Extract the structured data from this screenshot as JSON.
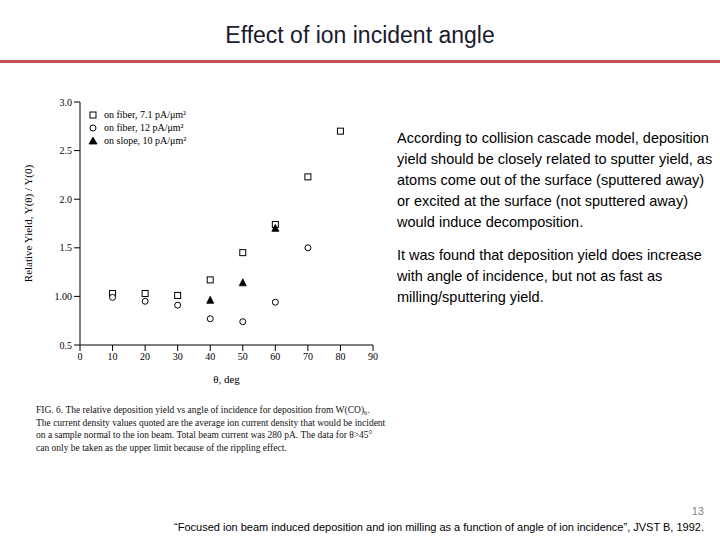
{
  "title": "Effect of ion incident angle",
  "chart_data": {
    "type": "scatter",
    "x_label": "θ, deg",
    "y_label": "Relative Yield, Y(θ) / Y(0)",
    "xlim": [
      0,
      90
    ],
    "xticks": [
      0,
      10,
      20,
      30,
      40,
      50,
      60,
      70,
      80,
      90
    ],
    "ylim": [
      0.5,
      3.0
    ],
    "yticks": [
      {
        "value": 0.5,
        "label": "0.5"
      },
      {
        "value": 1.0,
        "label": "1.00"
      },
      {
        "value": 1.5,
        "label": "1.5"
      },
      {
        "value": 2.0,
        "label": "2.0"
      },
      {
        "value": 2.5,
        "label": "2.5"
      },
      {
        "value": 3.0,
        "label": "3.0"
      }
    ],
    "grid": false,
    "legend": "upper left",
    "series": [
      {
        "name": "on fiber, 7.1 pA/μm²",
        "color": "#000000",
        "marker": "square",
        "x": [
          10,
          20,
          30,
          40,
          50,
          60,
          70,
          80
        ],
        "values": [
          1.03,
          1.03,
          1.01,
          1.17,
          1.45,
          1.74,
          2.23,
          2.7
        ]
      },
      {
        "name": "on fiber, 12 pA/μm²",
        "color": "#000000",
        "marker": "circle",
        "x": [
          10,
          20,
          30,
          40,
          50,
          60,
          70
        ],
        "values": [
          0.99,
          0.95,
          0.91,
          0.77,
          0.74,
          0.94,
          1.5
        ]
      },
      {
        "name": "on slope, 10 pA/μm²",
        "color": "#000000",
        "marker": "triangle",
        "x": [
          40,
          50,
          60
        ],
        "values": [
          0.96,
          1.14,
          1.7
        ]
      }
    ]
  },
  "caption": "FIG. 6. The relative deposition yield vs angle of incidence for deposition from W(CO)₆. The current density values quoted are the average ion current density that would be incident on a sample normal to the ion beam. Total beam current was 280 pA. The data for θ>45° can only be taken as the upper limit because of the rippling effect.",
  "paragraphs": [
    "According to collision cascade model, deposition yield should be closely related to sputter yield, as atoms come out of the surface (sputtered away) or excited at the surface (not sputtered away) would induce decomposition.",
    "It was found that deposition yield does increase with angle of incidence, but not as fast as milling/sputtering yield."
  ],
  "page_number": "13",
  "citation": "“Focused ion beam induced deposition and ion milling as a function of angle of ion incidence”, JVST B, 1992."
}
